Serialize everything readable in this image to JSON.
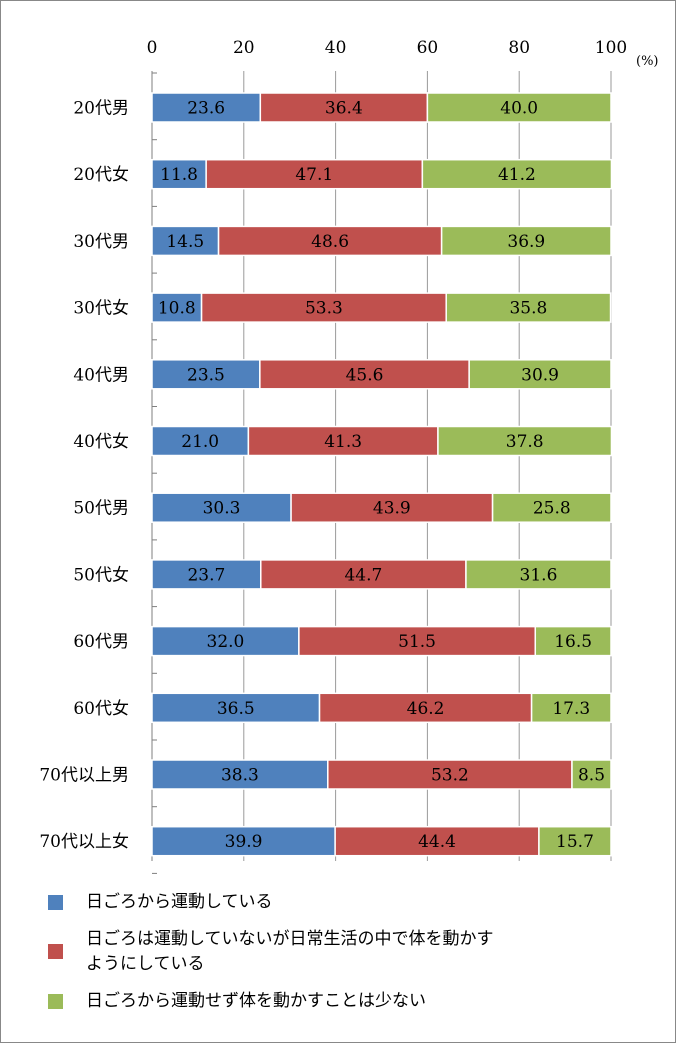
{
  "chart_data": {
    "type": "bar",
    "stacked": true,
    "orientation": "horizontal",
    "x_unit": "(%)",
    "xlim": [
      0,
      100
    ],
    "xticks": [
      0,
      20,
      40,
      60,
      80,
      100
    ],
    "xtick_labels": [
      "0",
      "20",
      "40",
      "60",
      "80",
      "100"
    ],
    "categories": [
      "20代男",
      "20代女",
      "30代男",
      "30代女",
      "40代男",
      "40代女",
      "50代男",
      "50代女",
      "60代男",
      "60代女",
      "70代以上男",
      "70代以上女"
    ],
    "series": [
      {
        "name": "日ごろから運動している",
        "color": "#4f81bd",
        "values": [
          23.6,
          11.8,
          14.5,
          10.8,
          23.5,
          21.0,
          30.3,
          23.7,
          32.0,
          36.5,
          38.3,
          39.9
        ]
      },
      {
        "name": "日ごろは運動していないが日常生活の中で体を動かすようにしている",
        "color": "#c0504d",
        "values": [
          36.4,
          47.1,
          48.6,
          53.3,
          45.6,
          41.3,
          43.9,
          44.7,
          51.5,
          46.2,
          53.2,
          44.4
        ]
      },
      {
        "name": "日ごろから運動せず体を動かすことは少ない",
        "color": "#9bbb59",
        "values": [
          40.0,
          41.2,
          36.9,
          35.8,
          30.9,
          37.8,
          25.8,
          31.6,
          16.5,
          17.3,
          8.5,
          15.7
        ]
      }
    ],
    "legend": {
      "position": "bottom",
      "items": [
        {
          "lines": [
            "日ごろから運動している"
          ],
          "color": "#4f81bd"
        },
        {
          "lines": [
            "日ごろは運動していないが日常生活の中で体を動かす",
            "ようにしている"
          ],
          "color": "#c0504d"
        },
        {
          "lines": [
            "日ごろから運動せず体を動かすことは少ない"
          ],
          "color": "#9bbb59"
        }
      ]
    },
    "gridlines": true
  }
}
